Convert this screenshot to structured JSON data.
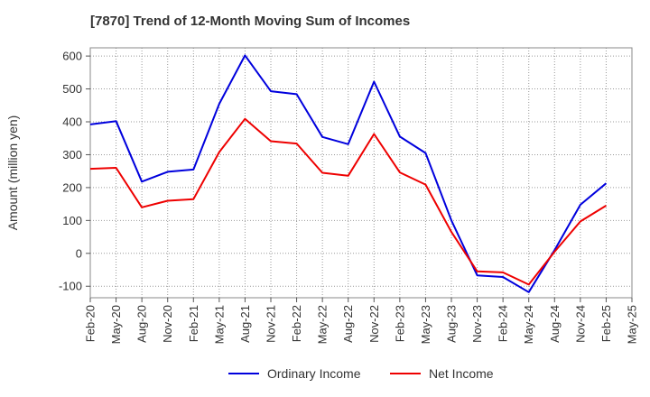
{
  "chart_data": {
    "type": "line",
    "title": "[7870]  Trend of 12-Month Moving Sum of Incomes",
    "xlabel": "",
    "ylabel": "Amount (million yen)",
    "ylim": [
      -135,
      625
    ],
    "yticks": [
      -100,
      0,
      100,
      200,
      300,
      400,
      500,
      600
    ],
    "categories": [
      "Feb-20",
      "May-20",
      "Aug-20",
      "Nov-20",
      "Feb-21",
      "May-21",
      "Aug-21",
      "Nov-21",
      "Feb-22",
      "May-22",
      "Aug-22",
      "Nov-22",
      "Feb-23",
      "May-23",
      "Aug-23",
      "Nov-23",
      "Feb-24",
      "May-24",
      "Aug-24",
      "Nov-24",
      "Feb-25",
      "May-25"
    ],
    "grid": true,
    "legend_position": "bottom",
    "series": [
      {
        "name": "Ordinary Income",
        "color": "#0000dd",
        "values": [
          392,
          402,
          218,
          248,
          255,
          455,
          602,
          493,
          484,
          354,
          332,
          522,
          355,
          305,
          100,
          -67,
          -72,
          -118,
          10,
          148,
          213,
          null
        ]
      },
      {
        "name": "Net Income",
        "color": "#ee0000",
        "values": [
          257,
          260,
          140,
          160,
          165,
          308,
          409,
          341,
          334,
          245,
          236,
          363,
          246,
          209,
          65,
          -55,
          -58,
          -95,
          5,
          97,
          145,
          null
        ]
      }
    ]
  }
}
